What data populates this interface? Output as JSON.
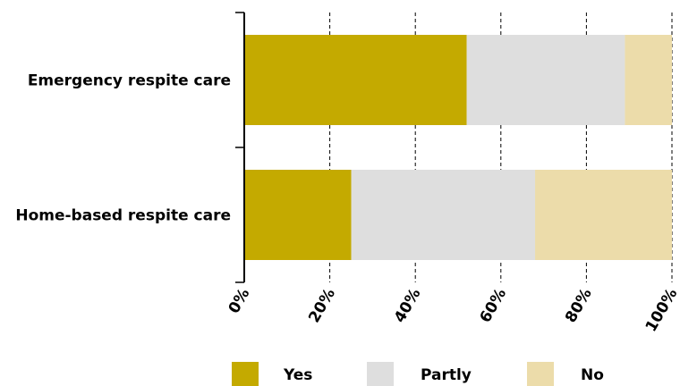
{
  "chart_data": {
    "type": "bar",
    "orientation": "horizontal",
    "stacked": true,
    "categories": [
      "Emergency respite care",
      "Home-based respite care"
    ],
    "series": [
      {
        "name": "Yes",
        "values": [
          52,
          25
        ],
        "color": "#c4aa00"
      },
      {
        "name": "Partly",
        "values": [
          37,
          43
        ],
        "color": "#dedede"
      },
      {
        "name": "No",
        "values": [
          11,
          32
        ],
        "color": "#ecdcaa"
      }
    ],
    "xlim": [
      0,
      100
    ],
    "x_ticks": [
      0,
      20,
      40,
      60,
      80,
      100
    ],
    "x_tick_labels": [
      "0%",
      "20%",
      "40%",
      "60%",
      "80%",
      "100%"
    ],
    "grid": "vertical dashed",
    "legend_position": "bottom",
    "title": "",
    "xlabel": "",
    "ylabel": ""
  }
}
